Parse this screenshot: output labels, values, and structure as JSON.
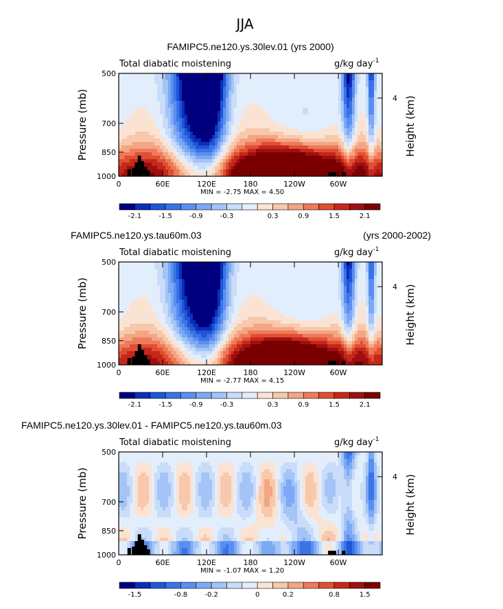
{
  "figure_title": "JJA",
  "chart_data": [
    {
      "type": "heatmap",
      "title": "FAMIPC5.ne120.ys.30lev.01 (yrs 2000)",
      "title_right": "",
      "subtitle_left": "Total diabatic moistening",
      "units": "g/kg day",
      "units_superscript": "-1",
      "ylabel_left": "Pressure (mb)",
      "ylabel_right": "Height (km)",
      "y_ticks": [
        "500",
        "700",
        "850",
        "1000"
      ],
      "y_right_ticks": [
        "4"
      ],
      "x_ticks": [
        "0",
        "60E",
        "120E",
        "180",
        "120W",
        "60W"
      ],
      "xlim": [
        0,
        360
      ],
      "ylim": [
        1000,
        500
      ],
      "stats": "MIN =   -2.75   MAX =    4.50",
      "colorbar": {
        "labels": [
          "-2.1",
          "-1.5",
          "-0.9",
          "-0.3",
          "0.3",
          "0.9",
          "1.5",
          "2.1"
        ],
        "colors": [
          "#00007f",
          "#0a2fb8",
          "#1f55d8",
          "#3a74e6",
          "#5a8ff0",
          "#7da9f4",
          "#a4c4f7",
          "#c9dcf9",
          "#e3eefc",
          "#fbe3d3",
          "#f8c8ac",
          "#f4a583",
          "#ee7a5a",
          "#e04f32",
          "#c4281b",
          "#9e1010",
          "#7a0000"
        ]
      }
    },
    {
      "type": "heatmap",
      "title": "FAMIPC5.ne120.ys.tau60m.03",
      "title_right": "(yrs 2000-2002)",
      "subtitle_left": "Total diabatic moistening",
      "units": "g/kg day",
      "units_superscript": "-1",
      "ylabel_left": "Pressure (mb)",
      "ylabel_right": "Height (km)",
      "y_ticks": [
        "500",
        "700",
        "850",
        "1000"
      ],
      "y_right_ticks": [
        "4"
      ],
      "x_ticks": [
        "0",
        "60E",
        "120E",
        "180",
        "120W",
        "60W"
      ],
      "xlim": [
        0,
        360
      ],
      "ylim": [
        1000,
        500
      ],
      "stats": "MIN =   -2.77   MAX =    4.15",
      "colorbar": {
        "labels": [
          "-2.1",
          "-1.5",
          "-0.9",
          "-0.3",
          "0.3",
          "0.9",
          "1.5",
          "2.1"
        ],
        "colors": [
          "#00007f",
          "#0a2fb8",
          "#1f55d8",
          "#3a74e6",
          "#5a8ff0",
          "#7da9f4",
          "#a4c4f7",
          "#c9dcf9",
          "#e3eefc",
          "#fbe3d3",
          "#f8c8ac",
          "#f4a583",
          "#ee7a5a",
          "#e04f32",
          "#c4281b",
          "#9e1010",
          "#7a0000"
        ]
      }
    },
    {
      "type": "heatmap",
      "title": "FAMIPC5.ne120.ys.30lev.01 - FAMIPC5.ne120.ys.tau60m.03",
      "title_right": "",
      "subtitle_left": "Total diabatic moistening",
      "units": "g/kg day",
      "units_superscript": "-1",
      "ylabel_left": "Pressure (mb)",
      "ylabel_right": "Height (km)",
      "y_ticks": [
        "500",
        "700",
        "850",
        "1000"
      ],
      "y_right_ticks": [
        "4"
      ],
      "x_ticks": [
        "0",
        "60E",
        "120E",
        "180",
        "120W",
        "60W"
      ],
      "xlim": [
        0,
        360
      ],
      "ylim": [
        1000,
        500
      ],
      "stats": "MIN =   -1.07   MAX =    1.20",
      "colorbar": {
        "labels": [
          "-1.5",
          "-0.8",
          "-0.2",
          "0",
          "0.2",
          "0.8",
          "1.5"
        ],
        "colors": [
          "#00007f",
          "#0a2fb8",
          "#1f55d8",
          "#3a74e6",
          "#5a8ff0",
          "#7da9f4",
          "#a4c4f7",
          "#c9dcf9",
          "#e3eefc",
          "#fbe3d3",
          "#f8c8ac",
          "#f4a583",
          "#ee7a5a",
          "#e04f32",
          "#c4281b",
          "#9e1010",
          "#7a0000"
        ]
      }
    }
  ]
}
